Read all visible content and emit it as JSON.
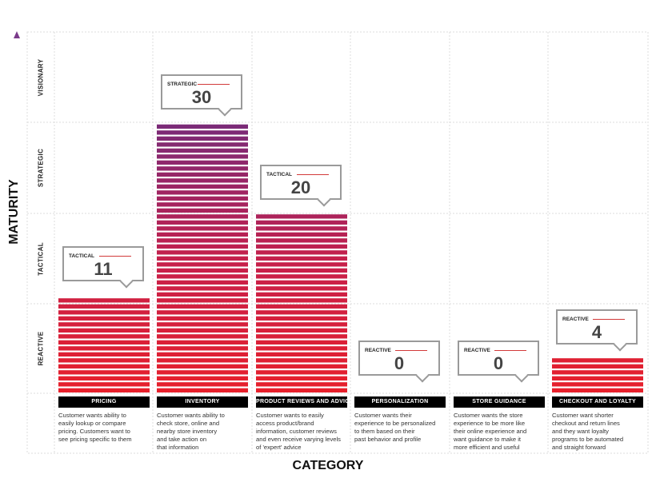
{
  "chart_data": {
    "type": "bar",
    "xlabel": "CATEGORY",
    "ylabel": "MATURITY",
    "ylim": [
      0,
      40
    ],
    "levels": [
      "REACTIVE",
      "TACTICAL",
      "STRATEGIC",
      "VISIONARY"
    ],
    "categories": [
      "PRICING",
      "INVENTORY",
      "PRODUCT REVIEWS AND ADVICE",
      "PERSONALIZATION",
      "STORE GUIDANCE",
      "CHECKOUT AND LOYALTY"
    ],
    "values": [
      11,
      30,
      20,
      0,
      0,
      4
    ],
    "maturity": [
      "TACTICAL",
      "STRATEGIC",
      "TACTICAL",
      "REACTIVE",
      "REACTIVE",
      "REACTIVE"
    ],
    "descriptions": [
      [
        "Customer wants ability to",
        "easily lookup or compare",
        "pricing. Customers want to",
        "see pricing specific to them"
      ],
      [
        "Customer wants ability to",
        "check store, online and",
        "nearby store inventory",
        "and take action on",
        "that information"
      ],
      [
        "Customer wants to easily",
        "access product/brand",
        "information, customer reviews",
        "and even receive varying levels",
        "of 'expert' advice"
      ],
      [
        "Customer wants their",
        "experience to be personalized",
        "to them based on their",
        "past behavior and profile"
      ],
      [
        "Customer wants the store",
        "experience to be more like",
        "their online experience and",
        "want guidance to make it",
        "more efficient and useful"
      ],
      [
        "Customer want shorter",
        "checkout and return lines",
        "and they want loyalty",
        "programs to be automated",
        "and straight forward"
      ]
    ],
    "grid": true
  },
  "colors": {
    "bar_bottom": "#e8202a",
    "bar_mid": "#c8204a",
    "bar_top": "#7a2a78",
    "axis_arrow": "#c01a5a",
    "axis_arrow_top": "#7a3a8a",
    "grid": "#dddddd",
    "category_bar": "#000000"
  }
}
